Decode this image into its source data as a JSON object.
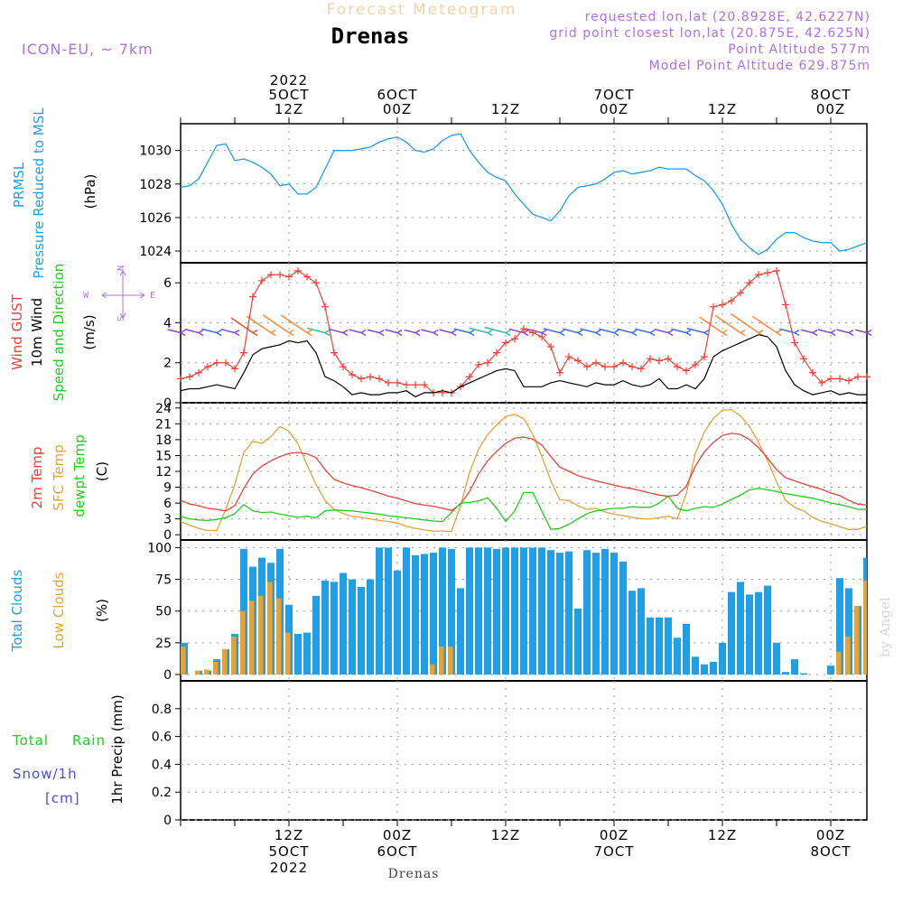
{
  "header": {
    "subtitle": "Forecast Meteogram",
    "location": "Drenas",
    "model": "ICON-EU, ~ 7km",
    "requested": "requested lon,lat (20.8928E, 42.6227N)",
    "gridpoint": "grid point closest lon,lat (20.875E, 42.625N)",
    "point_alt": "Point Altitude 577m",
    "model_alt": "Model Point Altitude 629.875m"
  },
  "time_axis": {
    "top_labels": [
      {
        "h": 12,
        "lines": [
          "2022",
          "5OCT",
          "12Z"
        ]
      },
      {
        "h": 24,
        "lines": [
          "6OCT",
          "00Z"
        ]
      },
      {
        "h": 36,
        "lines": [
          "12Z"
        ]
      },
      {
        "h": 48,
        "lines": [
          "7OCT",
          "00Z"
        ]
      },
      {
        "h": 60,
        "lines": [
          "12Z"
        ]
      },
      {
        "h": 72,
        "lines": [
          "8OCT",
          "00Z"
        ]
      }
    ],
    "bottom_labels": [
      {
        "h": 12,
        "lines": [
          "12Z",
          "5OCT",
          "2022"
        ]
      },
      {
        "h": 24,
        "lines": [
          "00Z",
          "6OCT"
        ]
      },
      {
        "h": 36,
        "lines": [
          "12Z"
        ]
      },
      {
        "h": 48,
        "lines": [
          "00Z",
          "7OCT"
        ]
      },
      {
        "h": 60,
        "lines": [
          "12Z"
        ]
      },
      {
        "h": 72,
        "lines": [
          "00Z",
          "8OCT"
        ]
      }
    ],
    "footer_location": "Drenas",
    "watermark": "by Angel"
  },
  "panels": {
    "pressure": {
      "label1": "PRMSL",
      "label2": "Pressure Reduced to MSL",
      "unit": "(hPa)",
      "color": "#1e9fe6"
    },
    "wind": {
      "label_gust": "Wind GUST",
      "label_wind": "10m Wind",
      "label_dir": "Speed and Direction",
      "unit": "(m/s)",
      "compass": {
        "w": "W",
        "e": "E",
        "n": "N",
        "s": "S"
      }
    },
    "temp": {
      "label_t2m": "2m Temp",
      "label_sfc": "SFC Temp",
      "label_dew": "dewpt Temp",
      "unit": "(C)"
    },
    "clouds": {
      "label_total": "Total Clouds",
      "label_low": "Low Clouds",
      "unit": "(%)"
    },
    "precip": {
      "label_total": "Total",
      "label_rain": "Rain",
      "label_snow": "Snow/1h",
      "label_cm": "[cm]",
      "unit": "1hr Precip (mm)"
    }
  },
  "colors": {
    "pressure": "#1e9fe6",
    "gust": "#e8443a",
    "wind": "#000000",
    "t2m": "#e8443a",
    "sfc": "#e0a43a",
    "dew": "#22cc22",
    "total_clouds": "#1e9fe6",
    "low_clouds": "#e0a43a",
    "model_label": "#b070e0",
    "rain_label": "#22cc22",
    "snow_label": "#4a4ae0"
  },
  "chart_data": [
    {
      "type": "line",
      "ylabel": "(hPa)",
      "ylim": [
        1023.3,
        1031.6
      ],
      "yticks": [
        1024,
        1026,
        1028,
        1030
      ],
      "x_hours": [
        0,
        1,
        2,
        3,
        4,
        5,
        6,
        7,
        8,
        9,
        10,
        11,
        12,
        13,
        14,
        15,
        16,
        17,
        18,
        19,
        20,
        21,
        22,
        23,
        24,
        25,
        26,
        27,
        28,
        29,
        30,
        31,
        32,
        33,
        34,
        35,
        36,
        37,
        38,
        39,
        40,
        41,
        42,
        43,
        44,
        45,
        46,
        47,
        48,
        49,
        50,
        51,
        52,
        53,
        54,
        55,
        56,
        57,
        58,
        59,
        60,
        61,
        62,
        63,
        64,
        65,
        66,
        67,
        68,
        69,
        70,
        71,
        72,
        73,
        74,
        75,
        76
      ],
      "series": [
        {
          "name": "PRMSL",
          "values": [
            1027.8,
            1027.9,
            1028.3,
            1029.3,
            1030.3,
            1030.4,
            1029.4,
            1029.5,
            1029.3,
            1029.0,
            1028.6,
            1027.9,
            1028.0,
            1027.4,
            1027.4,
            1027.8,
            1028.9,
            1030.0,
            1030.0,
            1030.0,
            1030.1,
            1030.2,
            1030.5,
            1030.7,
            1030.8,
            1030.5,
            1030.0,
            1029.9,
            1030.1,
            1030.6,
            1030.9,
            1031.0,
            1030.0,
            1029.3,
            1028.7,
            1028.4,
            1028.2,
            1027.4,
            1026.8,
            1026.2,
            1026.0,
            1025.8,
            1026.4,
            1027.3,
            1027.8,
            1027.9,
            1028.0,
            1028.3,
            1028.7,
            1028.8,
            1028.6,
            1028.7,
            1028.8,
            1029.0,
            1028.9,
            1028.9,
            1028.9,
            1028.5,
            1028.2,
            1027.6,
            1026.8,
            1025.6,
            1024.7,
            1024.2,
            1023.8,
            1024.1,
            1024.7,
            1025.1,
            1025.1,
            1024.8,
            1024.6,
            1024.5,
            1024.5,
            1024.0,
            1024.1,
            1024.3,
            1024.5
          ]
        }
      ]
    },
    {
      "type": "line",
      "ylabel": "(m/s)",
      "ylim": [
        0,
        7
      ],
      "yticks": [
        0,
        2,
        4,
        6
      ],
      "x_hours": [
        0,
        1,
        2,
        3,
        4,
        5,
        6,
        7,
        8,
        9,
        10,
        11,
        12,
        13,
        14,
        15,
        16,
        17,
        18,
        19,
        20,
        21,
        22,
        23,
        24,
        25,
        26,
        27,
        28,
        29,
        30,
        31,
        32,
        33,
        34,
        35,
        36,
        37,
        38,
        39,
        40,
        41,
        42,
        43,
        44,
        45,
        46,
        47,
        48,
        49,
        50,
        51,
        52,
        53,
        54,
        55,
        56,
        57,
        58,
        59,
        60,
        61,
        62,
        63,
        64,
        65,
        66,
        67,
        68,
        69,
        70,
        71,
        72,
        73,
        74,
        75,
        76
      ],
      "series": [
        {
          "name": "Wind GUST",
          "values": [
            1.2,
            1.3,
            1.5,
            1.8,
            2.0,
            2.0,
            1.7,
            2.5,
            5.3,
            6.1,
            6.4,
            6.4,
            6.3,
            6.6,
            6.3,
            6.0,
            4.8,
            2.5,
            1.8,
            1.4,
            1.2,
            1.3,
            1.2,
            1.0,
            1.0,
            0.9,
            0.9,
            0.9,
            0.5,
            0.5,
            0.5,
            0.8,
            1.3,
            1.9,
            2.0,
            2.5,
            3.0,
            3.2,
            3.7,
            3.5,
            3.3,
            2.8,
            1.5,
            2.3,
            2.1,
            1.8,
            2.0,
            1.8,
            1.8,
            2.0,
            1.8,
            1.7,
            2.2,
            2.1,
            2.2,
            1.8,
            1.6,
            1.9,
            2.3,
            4.8,
            4.9,
            5.1,
            5.5,
            6.0,
            6.4,
            6.5,
            6.6,
            4.9,
            3.0,
            2.2,
            1.5,
            1.0,
            1.2,
            1.2,
            1.1,
            1.3,
            1.3
          ]
        },
        {
          "name": "10m Wind",
          "values": [
            0.6,
            0.7,
            0.7,
            0.8,
            0.9,
            0.8,
            0.7,
            1.5,
            2.4,
            2.7,
            2.8,
            2.9,
            3.1,
            3.0,
            3.1,
            2.5,
            1.3,
            1.1,
            0.8,
            0.4,
            0.5,
            0.4,
            0.4,
            0.5,
            0.5,
            0.6,
            0.3,
            0.5,
            0.5,
            0.6,
            0.5,
            0.8,
            1.0,
            1.2,
            1.4,
            1.6,
            1.7,
            1.6,
            0.8,
            0.8,
            0.8,
            1.0,
            1.1,
            1.0,
            0.9,
            0.8,
            1.0,
            0.9,
            0.9,
            1.1,
            0.9,
            0.8,
            0.9,
            1.2,
            0.7,
            0.7,
            0.9,
            0.7,
            1.2,
            2.3,
            2.6,
            2.8,
            3.0,
            3.2,
            3.4,
            3.3,
            2.8,
            1.6,
            0.9,
            0.6,
            0.4,
            0.5,
            0.6,
            0.4,
            0.5,
            0.4,
            0.4
          ]
        }
      ]
    },
    {
      "type": "line",
      "ylabel": "(C)",
      "ylim": [
        -1,
        25
      ],
      "yticks": [
        0,
        3,
        6,
        9,
        12,
        15,
        18,
        21,
        24
      ],
      "x_hours": [
        0,
        1,
        2,
        3,
        4,
        5,
        6,
        7,
        8,
        9,
        10,
        11,
        12,
        13,
        14,
        15,
        16,
        17,
        18,
        19,
        20,
        21,
        22,
        23,
        24,
        25,
        26,
        27,
        28,
        29,
        30,
        31,
        32,
        33,
        34,
        35,
        36,
        37,
        38,
        39,
        40,
        41,
        42,
        43,
        44,
        45,
        46,
        47,
        48,
        49,
        50,
        51,
        52,
        53,
        54,
        55,
        56,
        57,
        58,
        59,
        60,
        61,
        62,
        63,
        64,
        65,
        66,
        67,
        68,
        69,
        70,
        71,
        72,
        73,
        74,
        75,
        76
      ],
      "series": [
        {
          "name": "2m Temp",
          "values": [
            6.5,
            5.8,
            5.5,
            5.0,
            4.8,
            4.5,
            5.5,
            8.8,
            11.5,
            13.0,
            14.0,
            14.8,
            15.4,
            15.6,
            15.3,
            14.6,
            12.3,
            10.5,
            9.8,
            9.3,
            8.9,
            8.4,
            7.9,
            7.3,
            6.9,
            6.4,
            5.9,
            5.6,
            5.4,
            5.0,
            4.6,
            5.8,
            8.2,
            11.5,
            14.0,
            15.8,
            17.3,
            18.3,
            18.5,
            18.1,
            17.0,
            14.8,
            12.8,
            12.0,
            11.2,
            10.7,
            10.2,
            9.8,
            9.4,
            9.0,
            8.7,
            8.3,
            7.9,
            7.5,
            7.3,
            7.5,
            9.2,
            13.0,
            15.7,
            17.5,
            18.8,
            19.2,
            19.0,
            18.0,
            16.5,
            14.5,
            12.3,
            10.8,
            10.2,
            9.6,
            9.1,
            8.6,
            7.9,
            7.4,
            6.5,
            5.8,
            5.6
          ]
        },
        {
          "name": "SFC Temp",
          "values": [
            2.5,
            1.8,
            1.2,
            0.8,
            0.8,
            4.8,
            9.5,
            15.6,
            17.7,
            17.3,
            18.6,
            20.5,
            19.6,
            17.2,
            13.2,
            9.5,
            6.5,
            4.8,
            4.0,
            3.5,
            3.3,
            3.0,
            2.7,
            2.5,
            2.2,
            1.6,
            1.2,
            0.9,
            0.7,
            0.7,
            0.6,
            5.5,
            11.8,
            16.2,
            19.0,
            20.8,
            22.4,
            22.8,
            22.0,
            19.0,
            14.8,
            10.2,
            6.6,
            6.5,
            5.5,
            4.8,
            5.0,
            4.3,
            3.9,
            3.6,
            3.3,
            3.0,
            3.0,
            3.2,
            3.5,
            3.0,
            7.8,
            15.4,
            19.5,
            22.0,
            23.6,
            23.7,
            22.5,
            20.5,
            17.5,
            14.0,
            10.0,
            6.5,
            5.2,
            4.5,
            3.3,
            2.5,
            2.1,
            1.5,
            1.0,
            1.0,
            1.6
          ]
        },
        {
          "name": "dewpt Temp",
          "values": [
            3.5,
            3.0,
            2.8,
            2.7,
            2.9,
            3.2,
            4.0,
            5.7,
            4.5,
            4.2,
            4.3,
            3.9,
            3.6,
            3.3,
            3.5,
            3.2,
            4.5,
            4.7,
            4.6,
            4.5,
            4.3,
            4.1,
            3.9,
            3.6,
            3.4,
            3.2,
            3.0,
            2.8,
            2.6,
            2.5,
            4.2,
            6.0,
            6.1,
            6.4,
            7.0,
            5.0,
            2.5,
            4.5,
            8.0,
            8.0,
            4.5,
            1.0,
            1.2,
            2.0,
            3.0,
            4.0,
            4.5,
            4.8,
            5.0,
            5.0,
            5.3,
            5.2,
            5.2,
            6.0,
            7.3,
            5.0,
            4.5,
            5.0,
            5.3,
            5.2,
            5.8,
            6.7,
            7.5,
            8.5,
            8.8,
            8.5,
            8.2,
            7.8,
            7.5,
            7.2,
            6.9,
            6.5,
            6.0,
            5.7,
            5.3,
            4.8,
            4.8
          ]
        }
      ]
    },
    {
      "type": "bar",
      "ylabel": "(%)",
      "ylim": [
        -5,
        106
      ],
      "yticks": [
        0,
        25,
        50,
        75,
        100
      ],
      "x_hours": [
        0,
        1,
        2,
        3,
        4,
        5,
        6,
        7,
        8,
        9,
        10,
        11,
        12,
        13,
        14,
        15,
        16,
        17,
        18,
        19,
        20,
        21,
        22,
        23,
        24,
        25,
        26,
        27,
        28,
        29,
        30,
        31,
        32,
        33,
        34,
        35,
        36,
        37,
        38,
        39,
        40,
        41,
        42,
        43,
        44,
        45,
        46,
        47,
        48,
        49,
        50,
        51,
        52,
        53,
        54,
        55,
        56,
        57,
        58,
        59,
        60,
        61,
        62,
        63,
        64,
        65,
        66,
        67,
        68,
        69,
        70,
        71,
        72,
        73,
        74,
        75,
        76
      ],
      "series": [
        {
          "name": "Total Clouds",
          "values": [
            25,
            0,
            3,
            3,
            12,
            20,
            32,
            99,
            85,
            92,
            88,
            99,
            55,
            32,
            33,
            62,
            74,
            73,
            80,
            75,
            69,
            75,
            100,
            100,
            82,
            100,
            94,
            95,
            96,
            100,
            99,
            68,
            100,
            100,
            100,
            99,
            100,
            100,
            100,
            100,
            100,
            98,
            96,
            97,
            52,
            98,
            96,
            99,
            96,
            89,
            66,
            68,
            45,
            45,
            45,
            29,
            40,
            14,
            8,
            10,
            25,
            65,
            73,
            63,
            65,
            70,
            25,
            2,
            12,
            1,
            0,
            0,
            7,
            76,
            68,
            54,
            92
          ]
        },
        {
          "name": "Low Clouds",
          "values": [
            22,
            0,
            3,
            4,
            10,
            20,
            30,
            50,
            58,
            62,
            73,
            60,
            33,
            0,
            0,
            0,
            0,
            0,
            0,
            0,
            0,
            0,
            0,
            0,
            0,
            0,
            0,
            0,
            8,
            22,
            22,
            0,
            0,
            0,
            0,
            0,
            0,
            0,
            0,
            0,
            0,
            0,
            0,
            0,
            0,
            0,
            0,
            0,
            0,
            0,
            0,
            0,
            0,
            0,
            0,
            0,
            0,
            0,
            0,
            0,
            0,
            0,
            0,
            0,
            0,
            0,
            0,
            0,
            0,
            0,
            0,
            0,
            0,
            18,
            30,
            54,
            74
          ]
        }
      ]
    },
    {
      "type": "line",
      "ylabel": "1hr Precip (mm)",
      "ylim": [
        0,
        1
      ],
      "yticks": [
        0,
        0.2,
        0.4,
        0.6,
        0.8
      ],
      "series": []
    }
  ]
}
